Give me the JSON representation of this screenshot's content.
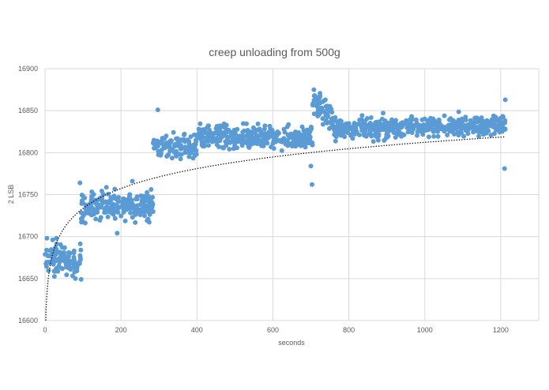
{
  "chart_data": {
    "type": "scatter",
    "title": "creep unloading from 500g",
    "xlabel": "seconds",
    "ylabel": "2 LSB",
    "xlim": [
      0,
      1300
    ],
    "ylim": [
      16600,
      16900
    ],
    "x_ticks": [
      "0",
      "200",
      "400",
      "600",
      "800",
      "1000",
      "1200"
    ],
    "y_ticks": [
      "16600",
      "16650",
      "16700",
      "16750",
      "16800",
      "16850",
      "16900"
    ],
    "grid": true,
    "legend": "none",
    "marker_color": "#5B9BD5",
    "trendline": {
      "type": "logarithmic",
      "style": "dotted",
      "color": "#000000",
      "points": [
        [
          2,
          16600
        ],
        [
          10,
          16640
        ],
        [
          30,
          16672
        ],
        [
          60,
          16694
        ],
        [
          100,
          16712
        ],
        [
          200,
          16742
        ],
        [
          300,
          16768
        ],
        [
          400,
          16785
        ],
        [
          600,
          16808
        ],
        [
          800,
          16824
        ],
        [
          1000,
          16834
        ],
        [
          1210,
          16844
        ]
      ]
    },
    "segments": [
      {
        "x_start": 0,
        "x_end": 95,
        "y_mean": 16672,
        "y_spread": 14,
        "n": 110
      },
      {
        "x_start": 95,
        "x_end": 285,
        "y_mean": 16735,
        "y_spread": 14,
        "n": 220
      },
      {
        "x_start": 285,
        "x_end": 400,
        "y_mean": 16808,
        "y_spread": 12,
        "n": 120
      },
      {
        "x_start": 400,
        "x_end": 705,
        "y_mean": 16818,
        "y_spread": 11,
        "n": 330
      },
      {
        "x_start": 705,
        "x_end": 760,
        "y_mean": 16838,
        "y_spread": 12,
        "n": 60
      },
      {
        "x_start": 760,
        "x_end": 1212,
        "y_mean": 16828,
        "y_spread": 10,
        "n": 470
      }
    ],
    "outliers": [
      [
        5,
        16698
      ],
      [
        20,
        16696
      ],
      [
        30,
        16698
      ],
      [
        80,
        16650
      ],
      [
        95,
        16649
      ],
      [
        92,
        16764
      ],
      [
        190,
        16704
      ],
      [
        230,
        16766
      ],
      [
        297,
        16851
      ],
      [
        700,
        16784
      ],
      [
        703,
        16762
      ],
      [
        708,
        16875
      ],
      [
        710,
        16868
      ],
      [
        1212,
        16863
      ],
      [
        1210,
        16781
      ]
    ]
  }
}
